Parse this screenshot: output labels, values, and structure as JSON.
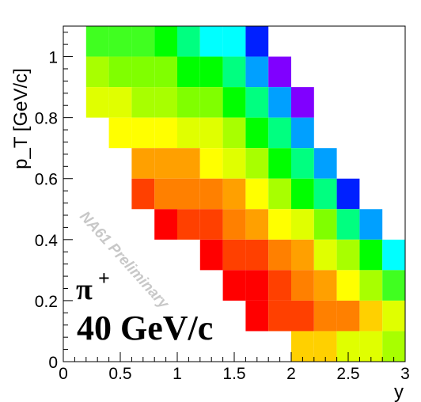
{
  "chart_data": {
    "type": "heatmap",
    "xlabel": "y",
    "ylabel": "p_T [GeV/c]",
    "xlim": [
      0,
      3
    ],
    "ylim": [
      0,
      1.1
    ],
    "x_ticks": [
      "0",
      "0.5",
      "1",
      "1.5",
      "2",
      "2.5",
      "3"
    ],
    "y_ticks": [
      "0",
      "0.2",
      "0.4",
      "0.6",
      "0.8",
      "1"
    ],
    "x_bin_width": 0.2,
    "y_bin_width": 0.1,
    "colors": {
      "V": "#8000ff",
      "B": "#0020ff",
      "LB": "#00a0ff",
      "C": "#00ffff",
      "T": "#00ff80",
      "G": "#00ff00",
      "LG": "#40ff20",
      "YG": "#80ff00",
      "YGL": "#a8ff00",
      "Y": "#e0ff00",
      "YE": "#ffff00",
      "GO": "#ffd000",
      "O": "#ffa000",
      "DO": "#ff8000",
      "RO": "#ff4000",
      "R": "#ff0000"
    },
    "cells": [
      {
        "x": 0.2,
        "y": 1.0,
        "c": "LG"
      },
      {
        "x": 0.4,
        "y": 1.0,
        "c": "LG"
      },
      {
        "x": 0.6,
        "y": 1.0,
        "c": "LG"
      },
      {
        "x": 0.8,
        "y": 1.0,
        "c": "G"
      },
      {
        "x": 1.0,
        "y": 1.0,
        "c": "T"
      },
      {
        "x": 1.2,
        "y": 1.0,
        "c": "C"
      },
      {
        "x": 1.4,
        "y": 1.0,
        "c": "C"
      },
      {
        "x": 1.6,
        "y": 1.0,
        "c": "B"
      },
      {
        "x": 0.2,
        "y": 0.9,
        "c": "YGL"
      },
      {
        "x": 0.4,
        "y": 0.9,
        "c": "YG"
      },
      {
        "x": 0.6,
        "y": 0.9,
        "c": "YG"
      },
      {
        "x": 0.8,
        "y": 0.9,
        "c": "YG"
      },
      {
        "x": 1.0,
        "y": 0.9,
        "c": "G"
      },
      {
        "x": 1.2,
        "y": 0.9,
        "c": "G"
      },
      {
        "x": 1.4,
        "y": 0.9,
        "c": "T"
      },
      {
        "x": 1.6,
        "y": 0.9,
        "c": "LB"
      },
      {
        "x": 1.8,
        "y": 0.9,
        "c": "V"
      },
      {
        "x": 0.2,
        "y": 0.8,
        "c": "Y"
      },
      {
        "x": 0.4,
        "y": 0.8,
        "c": "Y"
      },
      {
        "x": 0.6,
        "y": 0.8,
        "c": "YGL"
      },
      {
        "x": 0.8,
        "y": 0.8,
        "c": "YGL"
      },
      {
        "x": 1.0,
        "y": 0.8,
        "c": "YG"
      },
      {
        "x": 1.2,
        "y": 0.8,
        "c": "YG"
      },
      {
        "x": 1.4,
        "y": 0.8,
        "c": "G"
      },
      {
        "x": 1.6,
        "y": 0.8,
        "c": "T"
      },
      {
        "x": 1.8,
        "y": 0.8,
        "c": "LB"
      },
      {
        "x": 2.0,
        "y": 0.8,
        "c": "V"
      },
      {
        "x": 0.4,
        "y": 0.7,
        "c": "YE"
      },
      {
        "x": 0.6,
        "y": 0.7,
        "c": "YE"
      },
      {
        "x": 0.8,
        "y": 0.7,
        "c": "YE"
      },
      {
        "x": 1.0,
        "y": 0.7,
        "c": "Y"
      },
      {
        "x": 1.2,
        "y": 0.7,
        "c": "Y"
      },
      {
        "x": 1.4,
        "y": 0.7,
        "c": "YGL"
      },
      {
        "x": 1.6,
        "y": 0.7,
        "c": "G"
      },
      {
        "x": 1.8,
        "y": 0.7,
        "c": "T"
      },
      {
        "x": 2.0,
        "y": 0.7,
        "c": "LB"
      },
      {
        "x": 0.6,
        "y": 0.6,
        "c": "O"
      },
      {
        "x": 0.8,
        "y": 0.6,
        "c": "O"
      },
      {
        "x": 1.0,
        "y": 0.6,
        "c": "O"
      },
      {
        "x": 1.2,
        "y": 0.6,
        "c": "YE"
      },
      {
        "x": 1.4,
        "y": 0.6,
        "c": "Y"
      },
      {
        "x": 1.6,
        "y": 0.6,
        "c": "YGL"
      },
      {
        "x": 1.8,
        "y": 0.6,
        "c": "G"
      },
      {
        "x": 2.0,
        "y": 0.6,
        "c": "T"
      },
      {
        "x": 2.2,
        "y": 0.6,
        "c": "LB"
      },
      {
        "x": 0.6,
        "y": 0.5,
        "c": "RO"
      },
      {
        "x": 0.8,
        "y": 0.5,
        "c": "DO"
      },
      {
        "x": 1.0,
        "y": 0.5,
        "c": "DO"
      },
      {
        "x": 1.2,
        "y": 0.5,
        "c": "DO"
      },
      {
        "x": 1.4,
        "y": 0.5,
        "c": "O"
      },
      {
        "x": 1.6,
        "y": 0.5,
        "c": "YE"
      },
      {
        "x": 1.8,
        "y": 0.5,
        "c": "YGL"
      },
      {
        "x": 2.0,
        "y": 0.5,
        "c": "G"
      },
      {
        "x": 2.2,
        "y": 0.5,
        "c": "T"
      },
      {
        "x": 2.4,
        "y": 0.5,
        "c": "B"
      },
      {
        "x": 0.8,
        "y": 0.4,
        "c": "R"
      },
      {
        "x": 1.0,
        "y": 0.4,
        "c": "RO"
      },
      {
        "x": 1.2,
        "y": 0.4,
        "c": "RO"
      },
      {
        "x": 1.4,
        "y": 0.4,
        "c": "DO"
      },
      {
        "x": 1.6,
        "y": 0.4,
        "c": "O"
      },
      {
        "x": 1.8,
        "y": 0.4,
        "c": "YE"
      },
      {
        "x": 2.0,
        "y": 0.4,
        "c": "Y"
      },
      {
        "x": 2.2,
        "y": 0.4,
        "c": "YG"
      },
      {
        "x": 2.4,
        "y": 0.4,
        "c": "T"
      },
      {
        "x": 2.6,
        "y": 0.4,
        "c": "LB"
      },
      {
        "x": 1.2,
        "y": 0.3,
        "c": "R"
      },
      {
        "x": 1.4,
        "y": 0.3,
        "c": "RO"
      },
      {
        "x": 1.6,
        "y": 0.3,
        "c": "RO"
      },
      {
        "x": 1.8,
        "y": 0.3,
        "c": "DO"
      },
      {
        "x": 2.0,
        "y": 0.3,
        "c": "O"
      },
      {
        "x": 2.2,
        "y": 0.3,
        "c": "Y"
      },
      {
        "x": 2.4,
        "y": 0.3,
        "c": "YGL"
      },
      {
        "x": 2.6,
        "y": 0.3,
        "c": "G"
      },
      {
        "x": 2.8,
        "y": 0.3,
        "c": "C"
      },
      {
        "x": 1.4,
        "y": 0.2,
        "c": "R"
      },
      {
        "x": 1.6,
        "y": 0.2,
        "c": "R"
      },
      {
        "x": 1.8,
        "y": 0.2,
        "c": "RO"
      },
      {
        "x": 2.0,
        "y": 0.2,
        "c": "DO"
      },
      {
        "x": 2.2,
        "y": 0.2,
        "c": "O"
      },
      {
        "x": 2.4,
        "y": 0.2,
        "c": "YE"
      },
      {
        "x": 2.6,
        "y": 0.2,
        "c": "YGL"
      },
      {
        "x": 2.8,
        "y": 0.2,
        "c": "LG"
      },
      {
        "x": 1.6,
        "y": 0.1,
        "c": "R"
      },
      {
        "x": 1.8,
        "y": 0.1,
        "c": "RO"
      },
      {
        "x": 2.0,
        "y": 0.1,
        "c": "RO"
      },
      {
        "x": 2.2,
        "y": 0.1,
        "c": "DO"
      },
      {
        "x": 2.4,
        "y": 0.1,
        "c": "DO"
      },
      {
        "x": 2.6,
        "y": 0.1,
        "c": "GO"
      },
      {
        "x": 2.8,
        "y": 0.1,
        "c": "Y"
      },
      {
        "x": 2.0,
        "y": 0.0,
        "c": "GO"
      },
      {
        "x": 2.2,
        "y": 0.0,
        "c": "GO"
      },
      {
        "x": 2.4,
        "y": 0.0,
        "c": "Y"
      },
      {
        "x": 2.6,
        "y": 0.0,
        "c": "Y"
      },
      {
        "x": 2.8,
        "y": 0.0,
        "c": "YGL"
      }
    ]
  },
  "annotations": {
    "particle": "π",
    "particle_charge": "+",
    "beam_momentum": "40 GeV/c",
    "watermark": "NA61 Preliminary"
  }
}
